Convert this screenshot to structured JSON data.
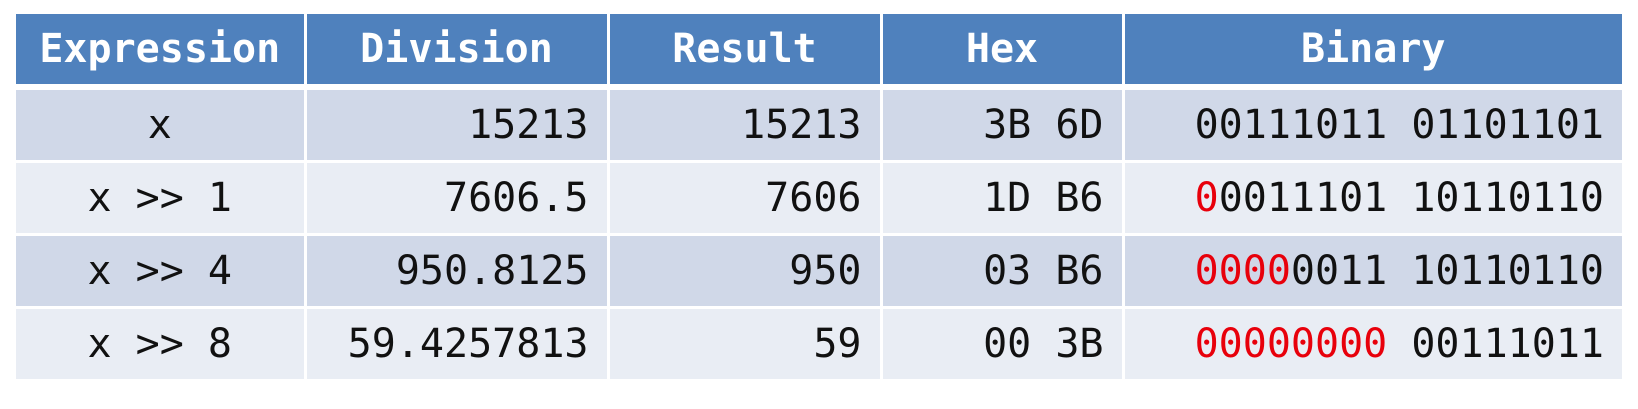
{
  "headers": [
    "Expression",
    "Division",
    "Result",
    "Hex",
    "Binary"
  ],
  "rows": [
    {
      "expr": "x",
      "division": "15213",
      "result": "15213",
      "hex": "3B 6D",
      "bin_red": "",
      "bin_rest": "00111011 01101101"
    },
    {
      "expr": "x >> 1",
      "division": "7606.5",
      "result": "7606",
      "hex": "1D B6",
      "bin_red": "0",
      "bin_rest": "0011101 10110110"
    },
    {
      "expr": "x >> 4",
      "division": "950.8125",
      "result": "950",
      "hex": "03 B6",
      "bin_red": "0000",
      "bin_rest": "0011 10110110"
    },
    {
      "expr": "x >> 8",
      "division": "59.4257813",
      "result": "59",
      "hex": "00 3B",
      "bin_red": "00000000",
      "bin_rest": " 00111011"
    }
  ],
  "colors": {
    "header_bg": "#4f81bd",
    "row_odd": "#d0d8e8",
    "row_even": "#e9edf4",
    "highlight_bits": "#e8000b"
  }
}
